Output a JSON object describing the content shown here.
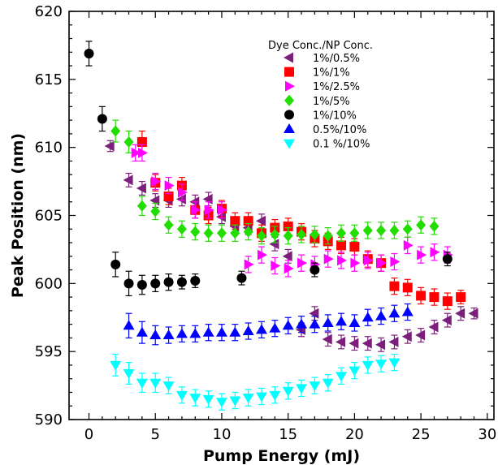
{
  "chart_data": {
    "type": "scatter",
    "xlabel": "Pump Energy (mJ)",
    "ylabel": "Peak Position (nm)",
    "xlim": [
      -1.5,
      30.5
    ],
    "ylim": [
      590,
      620
    ],
    "xticks": [
      0,
      5,
      10,
      15,
      20,
      25,
      30
    ],
    "yticks": [
      590,
      595,
      600,
      605,
      610,
      615,
      620
    ],
    "grid": false,
    "legend": {
      "title": "Dye Conc./NP Conc.",
      "placement": "top-right"
    },
    "series": [
      {
        "name": "1%/0.5%",
        "marker": "triangle-left",
        "color": "#7b1f7b",
        "points": [
          [
            1.6,
            610.1,
            0.4
          ],
          [
            3.0,
            607.6,
            0.5
          ],
          [
            4.0,
            607.0,
            0.5
          ],
          [
            5.0,
            606.1,
            0.5
          ],
          [
            6.0,
            606.1,
            0.5
          ],
          [
            7.0,
            606.2,
            0.5
          ],
          [
            8.0,
            606.0,
            0.5
          ],
          [
            9.0,
            606.2,
            0.5
          ],
          [
            10.0,
            604.9,
            0.5
          ],
          [
            11.0,
            604.2,
            0.5
          ],
          [
            12.0,
            604.1,
            0.5
          ],
          [
            13.0,
            604.6,
            0.5
          ],
          [
            14.0,
            602.9,
            0.5
          ],
          [
            15.0,
            602.0,
            0.5
          ],
          [
            16.0,
            596.6,
            0.5
          ],
          [
            17.0,
            597.8,
            0.5
          ],
          [
            18.0,
            595.9,
            0.5
          ],
          [
            19.0,
            595.7,
            0.5
          ],
          [
            20.0,
            595.6,
            0.5
          ],
          [
            21.0,
            595.6,
            0.5
          ],
          [
            22.0,
            595.5,
            0.5
          ],
          [
            23.0,
            595.7,
            0.5
          ],
          [
            24.0,
            596.1,
            0.5
          ],
          [
            25.0,
            596.2,
            0.5
          ],
          [
            26.0,
            596.8,
            0.5
          ],
          [
            27.0,
            597.3,
            0.5
          ],
          [
            28.0,
            597.8,
            0.5
          ],
          [
            29.0,
            597.8,
            0.4
          ]
        ]
      },
      {
        "name": "1%/1%",
        "marker": "square",
        "color": "#ff0000",
        "points": [
          [
            4.0,
            610.4,
            0.8
          ],
          [
            5.0,
            607.4,
            0.6
          ],
          [
            6.0,
            606.4,
            0.6
          ],
          [
            7.0,
            607.2,
            0.6
          ],
          [
            8.0,
            605.4,
            0.6
          ],
          [
            9.0,
            605.0,
            0.6
          ],
          [
            10.0,
            605.5,
            0.6
          ],
          [
            11.0,
            604.6,
            0.6
          ],
          [
            12.0,
            604.6,
            0.6
          ],
          [
            13.0,
            603.7,
            0.6
          ],
          [
            14.0,
            604.1,
            0.6
          ],
          [
            15.0,
            604.2,
            0.6
          ],
          [
            16.0,
            603.8,
            0.6
          ],
          [
            17.0,
            603.3,
            0.6
          ],
          [
            18.0,
            603.1,
            0.6
          ],
          [
            19.0,
            602.8,
            0.6
          ],
          [
            20.0,
            602.7,
            0.6
          ],
          [
            21.0,
            601.8,
            0.6
          ],
          [
            22.0,
            601.5,
            0.6
          ],
          [
            23.0,
            599.8,
            0.6
          ],
          [
            24.0,
            599.7,
            0.6
          ],
          [
            25.0,
            599.1,
            0.6
          ],
          [
            26.0,
            599.0,
            0.6
          ],
          [
            27.0,
            598.7,
            0.6
          ],
          [
            28.0,
            599.0,
            0.5
          ]
        ]
      },
      {
        "name": "1%/2.5%",
        "marker": "triangle-right",
        "color": "#ff00ff",
        "points": [
          [
            3.5,
            609.6,
            0.6
          ],
          [
            4.0,
            609.6,
            0.6
          ],
          [
            5.0,
            607.5,
            0.6
          ],
          [
            6.0,
            607.2,
            0.6
          ],
          [
            7.0,
            606.7,
            0.6
          ],
          [
            8.0,
            605.4,
            0.6
          ],
          [
            9.0,
            605.4,
            0.6
          ],
          [
            10.0,
            605.4,
            0.6
          ],
          [
            12.0,
            601.4,
            0.6
          ],
          [
            13.0,
            602.1,
            0.6
          ],
          [
            14.0,
            601.3,
            0.6
          ],
          [
            15.0,
            601.1,
            0.6
          ],
          [
            16.0,
            601.5,
            0.6
          ],
          [
            17.0,
            601.4,
            0.6
          ],
          [
            18.0,
            601.8,
            0.6
          ],
          [
            19.0,
            601.7,
            0.6
          ],
          [
            20.0,
            601.5,
            0.6
          ],
          [
            21.0,
            601.7,
            0.6
          ],
          [
            22.0,
            601.5,
            0.6
          ],
          [
            23.0,
            601.6,
            0.6
          ],
          [
            24.0,
            602.8,
            0.6
          ],
          [
            25.0,
            602.1,
            0.6
          ],
          [
            26.0,
            602.3,
            0.6
          ],
          [
            27.0,
            602.1,
            0.6
          ]
        ]
      },
      {
        "name": "1%/5%",
        "marker": "diamond",
        "color": "#22dd00",
        "points": [
          [
            2.0,
            611.2,
            0.8
          ],
          [
            3.0,
            610.4,
            0.8
          ],
          [
            4.0,
            605.7,
            0.7
          ],
          [
            5.0,
            605.3,
            0.6
          ],
          [
            6.0,
            604.3,
            0.6
          ],
          [
            7.0,
            604.0,
            0.6
          ],
          [
            8.0,
            603.8,
            0.6
          ],
          [
            9.0,
            603.7,
            0.6
          ],
          [
            10.0,
            603.7,
            0.6
          ],
          [
            11.0,
            603.7,
            0.6
          ],
          [
            12.0,
            603.8,
            0.6
          ],
          [
            13.0,
            603.5,
            0.6
          ],
          [
            14.0,
            603.6,
            0.6
          ],
          [
            15.0,
            603.5,
            0.6
          ],
          [
            16.0,
            603.6,
            0.6
          ],
          [
            17.0,
            603.6,
            0.6
          ],
          [
            18.0,
            603.5,
            0.6
          ],
          [
            19.0,
            603.7,
            0.6
          ],
          [
            20.0,
            603.7,
            0.6
          ],
          [
            21.0,
            603.9,
            0.6
          ],
          [
            22.0,
            603.9,
            0.6
          ],
          [
            23.0,
            603.9,
            0.6
          ],
          [
            24.0,
            604.0,
            0.6
          ],
          [
            25.0,
            604.3,
            0.6
          ],
          [
            26.0,
            604.2,
            0.6
          ]
        ]
      },
      {
        "name": "1%/10%",
        "marker": "circle",
        "color": "#000000",
        "points": [
          [
            0.0,
            616.9,
            0.9
          ],
          [
            1.0,
            612.1,
            0.9
          ],
          [
            2.0,
            601.4,
            0.9
          ],
          [
            3.0,
            600.0,
            0.9
          ],
          [
            4.0,
            599.9,
            0.7
          ],
          [
            5.0,
            600.0,
            0.6
          ],
          [
            6.0,
            600.1,
            0.6
          ],
          [
            7.0,
            600.1,
            0.5
          ],
          [
            8.0,
            600.2,
            0.5
          ],
          [
            11.5,
            600.4,
            0.5
          ],
          [
            17.0,
            601.0,
            0.5
          ],
          [
            27.0,
            601.8,
            0.5
          ]
        ]
      },
      {
        "name": "0.5%/10%",
        "marker": "triangle-up",
        "color": "#0000ff",
        "points": [
          [
            3.0,
            596.9,
            0.9
          ],
          [
            4.0,
            596.4,
            0.8
          ],
          [
            5.0,
            596.2,
            0.7
          ],
          [
            6.0,
            596.2,
            0.6
          ],
          [
            7.0,
            596.3,
            0.6
          ],
          [
            8.0,
            596.3,
            0.6
          ],
          [
            9.0,
            596.4,
            0.6
          ],
          [
            10.0,
            596.4,
            0.6
          ],
          [
            11.0,
            596.4,
            0.6
          ],
          [
            12.0,
            596.5,
            0.6
          ],
          [
            13.0,
            596.6,
            0.6
          ],
          [
            14.0,
            596.7,
            0.6
          ],
          [
            15.0,
            596.9,
            0.6
          ],
          [
            16.0,
            597.0,
            0.6
          ],
          [
            17.0,
            597.0,
            0.6
          ],
          [
            18.0,
            597.1,
            0.6
          ],
          [
            19.0,
            597.2,
            0.6
          ],
          [
            20.0,
            597.1,
            0.6
          ],
          [
            21.0,
            597.5,
            0.6
          ],
          [
            22.0,
            597.6,
            0.6
          ],
          [
            23.0,
            597.8,
            0.6
          ],
          [
            24.0,
            597.9,
            0.6
          ]
        ]
      },
      {
        "name": "0.1 %/10%",
        "marker": "triangle-down",
        "color": "#00ffff",
        "points": [
          [
            2.0,
            594.0,
            0.8
          ],
          [
            3.0,
            593.4,
            0.8
          ],
          [
            4.0,
            592.7,
            0.7
          ],
          [
            5.0,
            592.7,
            0.7
          ],
          [
            6.0,
            592.5,
            0.6
          ],
          [
            7.0,
            591.8,
            0.6
          ],
          [
            8.0,
            591.6,
            0.6
          ],
          [
            9.0,
            591.5,
            0.6
          ],
          [
            10.0,
            591.3,
            0.6
          ],
          [
            11.0,
            591.4,
            0.6
          ],
          [
            12.0,
            591.6,
            0.6
          ],
          [
            13.0,
            591.7,
            0.6
          ],
          [
            14.0,
            591.8,
            0.6
          ],
          [
            15.0,
            592.1,
            0.6
          ],
          [
            16.0,
            592.3,
            0.6
          ],
          [
            17.0,
            592.5,
            0.6
          ],
          [
            18.0,
            592.7,
            0.6
          ],
          [
            19.0,
            593.2,
            0.6
          ],
          [
            20.0,
            593.6,
            0.6
          ],
          [
            21.0,
            594.0,
            0.6
          ],
          [
            22.0,
            594.1,
            0.6
          ],
          [
            23.0,
            594.2,
            0.6
          ]
        ]
      }
    ]
  }
}
